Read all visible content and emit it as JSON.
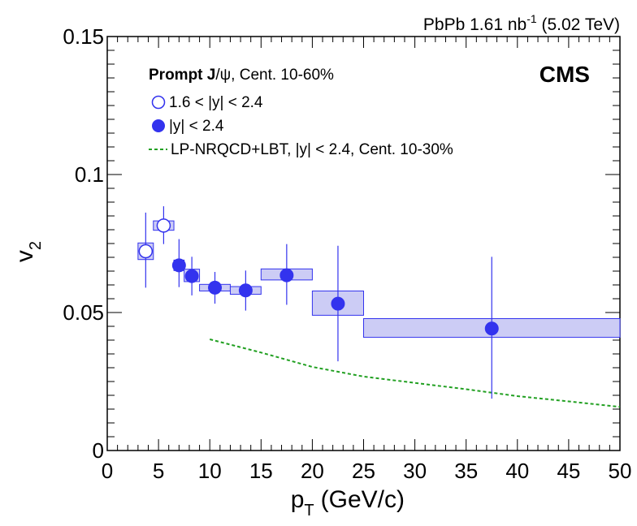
{
  "chart_data": {
    "type": "scatter",
    "header": {
      "collision_prefix": "PbPb 1.61 nb",
      "lumi_exponent": "-1",
      "energy": "(5.02 TeV)"
    },
    "experiment": "CMS",
    "xlabel": {
      "main": "p",
      "sub": "T",
      "unit": "(GeV/c)"
    },
    "ylabel": {
      "main": "v",
      "sub": "2"
    },
    "xlim": [
      0,
      50
    ],
    "ylim": [
      0,
      0.15
    ],
    "x_ticks": [
      "0",
      "5",
      "10",
      "15",
      "20",
      "25",
      "30",
      "35",
      "40",
      "45",
      "50"
    ],
    "y_ticks": [
      "0",
      "0.05",
      "0.1",
      "0.15"
    ],
    "grid": false,
    "legend": {
      "position": "top-left",
      "title_bold": "Prompt J",
      "title_rest": "/ψ, Cent. 10-60%",
      "entries": [
        {
          "label": "1.6 < |y| < 2.4",
          "marker": "open-circle"
        },
        {
          "label": "|y| < 2.4",
          "marker": "filled-circle"
        },
        {
          "label": "LP-NRQCD+LBT, |y| < 2.4, Cent. 10-30%",
          "marker": "dashed-line"
        }
      ]
    },
    "colors": {
      "points": "#3333ee",
      "box_fill": "#ccccf5",
      "box_stroke": "#3333ee",
      "model": "#22a022"
    },
    "series": [
      {
        "name": "1.6 < |y| < 2.4",
        "marker": "open-circle",
        "points": [
          {
            "x": 3.75,
            "y": 0.0722,
            "stat": [
              0.059,
              0.0862
            ],
            "sys_x": [
              3.0,
              4.5
            ],
            "sys_y": [
              0.0692,
              0.0752
            ]
          },
          {
            "x": 5.5,
            "y": 0.0815,
            "stat": [
              0.0748,
              0.0885
            ],
            "sys_x": [
              4.5,
              6.5
            ],
            "sys_y": [
              0.0798,
              0.0832
            ]
          }
        ]
      },
      {
        "name": "|y| < 2.4",
        "marker": "filled-circle",
        "points": [
          {
            "x": 7.0,
            "y": 0.0671,
            "stat": [
              0.0592,
              0.0766
            ],
            "sys_x": [
              6.5,
              7.5
            ],
            "sys_y": [
              0.0652,
              0.069
            ]
          },
          {
            "x": 8.25,
            "y": 0.0632,
            "stat": [
              0.0562,
              0.0702
            ],
            "sys_x": [
              7.5,
              9.0
            ],
            "sys_y": [
              0.0612,
              0.0657
            ]
          },
          {
            "x": 10.5,
            "y": 0.059,
            "stat": [
              0.0532,
              0.0647
            ],
            "sys_x": [
              9.0,
              12.0
            ],
            "sys_y": [
              0.0578,
              0.0602
            ]
          },
          {
            "x": 13.5,
            "y": 0.058,
            "stat": [
              0.0507,
              0.0652
            ],
            "sys_x": [
              12.0,
              15.0
            ],
            "sys_y": [
              0.0566,
              0.0594
            ]
          },
          {
            "x": 17.5,
            "y": 0.0635,
            "stat": [
              0.0528,
              0.0748
            ],
            "sys_x": [
              15.0,
              20.0
            ],
            "sys_y": [
              0.0618,
              0.0658
            ]
          },
          {
            "x": 22.5,
            "y": 0.0532,
            "stat": [
              0.0323,
              0.0742
            ],
            "sys_x": [
              20.0,
              25.0
            ],
            "sys_y": [
              0.049,
              0.0578
            ]
          },
          {
            "x": 37.5,
            "y": 0.0442,
            "stat": [
              0.0188,
              0.0702
            ],
            "sys_x": [
              25.0,
              50.0
            ],
            "sys_y": [
              0.041,
              0.0478
            ]
          }
        ]
      },
      {
        "name": "LP-NRQCD+LBT, |y| < 2.4, Cent. 10-30%",
        "marker": "dashed-line",
        "points": [
          {
            "x": 10,
            "y": 0.0403
          },
          {
            "x": 13,
            "y": 0.0374
          },
          {
            "x": 15,
            "y": 0.0355
          },
          {
            "x": 20,
            "y": 0.0303
          },
          {
            "x": 25,
            "y": 0.0268
          },
          {
            "x": 30,
            "y": 0.0245
          },
          {
            "x": 35,
            "y": 0.0222
          },
          {
            "x": 40,
            "y": 0.0197
          },
          {
            "x": 45,
            "y": 0.0178
          },
          {
            "x": 50,
            "y": 0.0158
          }
        ]
      }
    ]
  }
}
